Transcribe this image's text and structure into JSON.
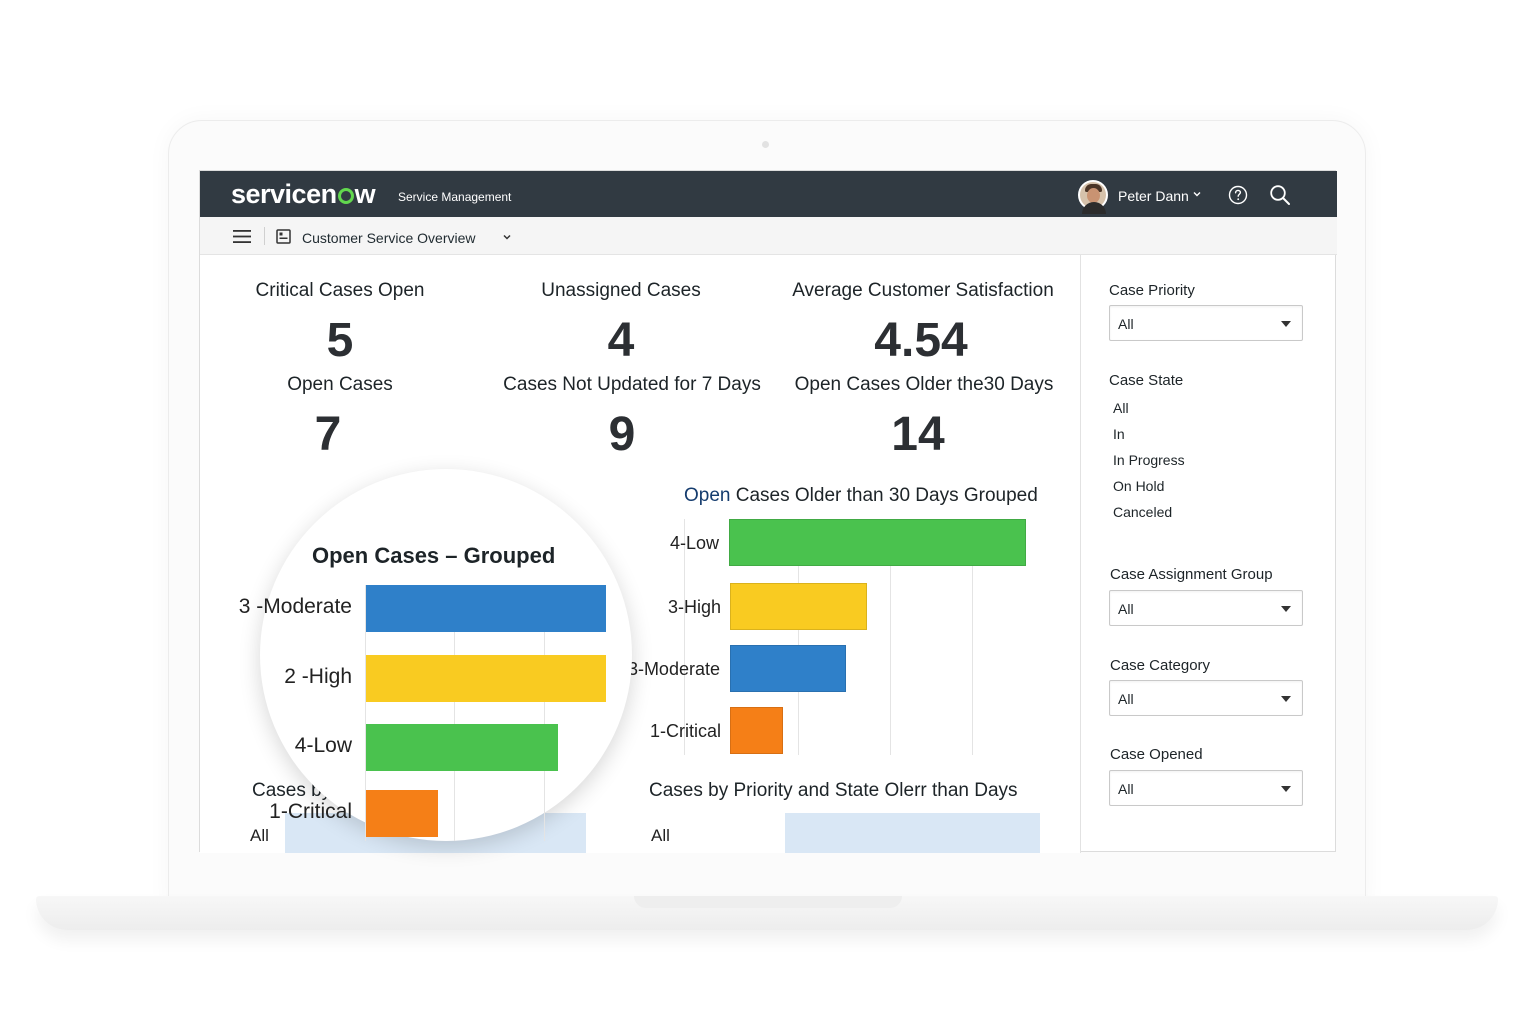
{
  "header": {
    "logo_text_pre": "servicen",
    "logo_text_post": "w",
    "app_name": "Service Management",
    "user_name": "Peter Dann",
    "colors": {
      "bar": "#313a42",
      "logo_accent": "#62d84e"
    }
  },
  "subbar": {
    "page_title": "Customer Service Overview"
  },
  "metrics": [
    {
      "title": "Critical Cases Open",
      "value": "5"
    },
    {
      "title": "Unassigned Cases",
      "value": "4"
    },
    {
      "title": "Average Customer Satisfaction",
      "value": "4.54"
    },
    {
      "title": "Open Cases",
      "value": "7"
    },
    {
      "title": "Cases Not Updated for 7 Days",
      "value": "9"
    },
    {
      "title": "Open Cases Older the30 Days",
      "value": "14"
    }
  ],
  "charts": {
    "grouped_title": "Open Cases – Grouped",
    "older_title_accent": "Open",
    "older_title_rest": " Cases Older than 30 Days Grouped",
    "priority_title": "Cases by Priority",
    "priority_state_title": "Cases by Priority and State Olerr than Days",
    "priority_label": "All",
    "priority_state_label": "All"
  },
  "chart_data": [
    {
      "type": "bar",
      "orientation": "horizontal",
      "title": "Open Cases – Grouped",
      "categories": [
        "3 -Moderate",
        "2 -High",
        "4-Low",
        "1-Critical"
      ],
      "values": [
        100,
        100,
        80,
        30
      ],
      "colors": [
        "#2f80c9",
        "#f9cb21",
        "#4ac24e",
        "#f57f17"
      ],
      "grid": true
    },
    {
      "type": "bar",
      "orientation": "horizontal",
      "title": "Open Cases Older than 30 Days Grouped",
      "categories": [
        "4-Low",
        "3-High",
        "3-Moderate",
        "1-Critical"
      ],
      "values": [
        100,
        46,
        39,
        18
      ],
      "colors": [
        "#4ac24e",
        "#f9cb21",
        "#2f80c9",
        "#f57f17"
      ],
      "grid": true
    }
  ],
  "filters": {
    "case_priority": {
      "label": "Case Priority",
      "value": "All"
    },
    "case_state": {
      "label": "Case State",
      "options": [
        "All",
        "In",
        "In Progress",
        "On Hold",
        "Canceled"
      ]
    },
    "case_assignment_group": {
      "label": "Case Assignment Group",
      "value": "All"
    },
    "case_category": {
      "label": "Case Category",
      "value": "All"
    },
    "case_opened": {
      "label": "Case Opened",
      "value": "All"
    }
  }
}
